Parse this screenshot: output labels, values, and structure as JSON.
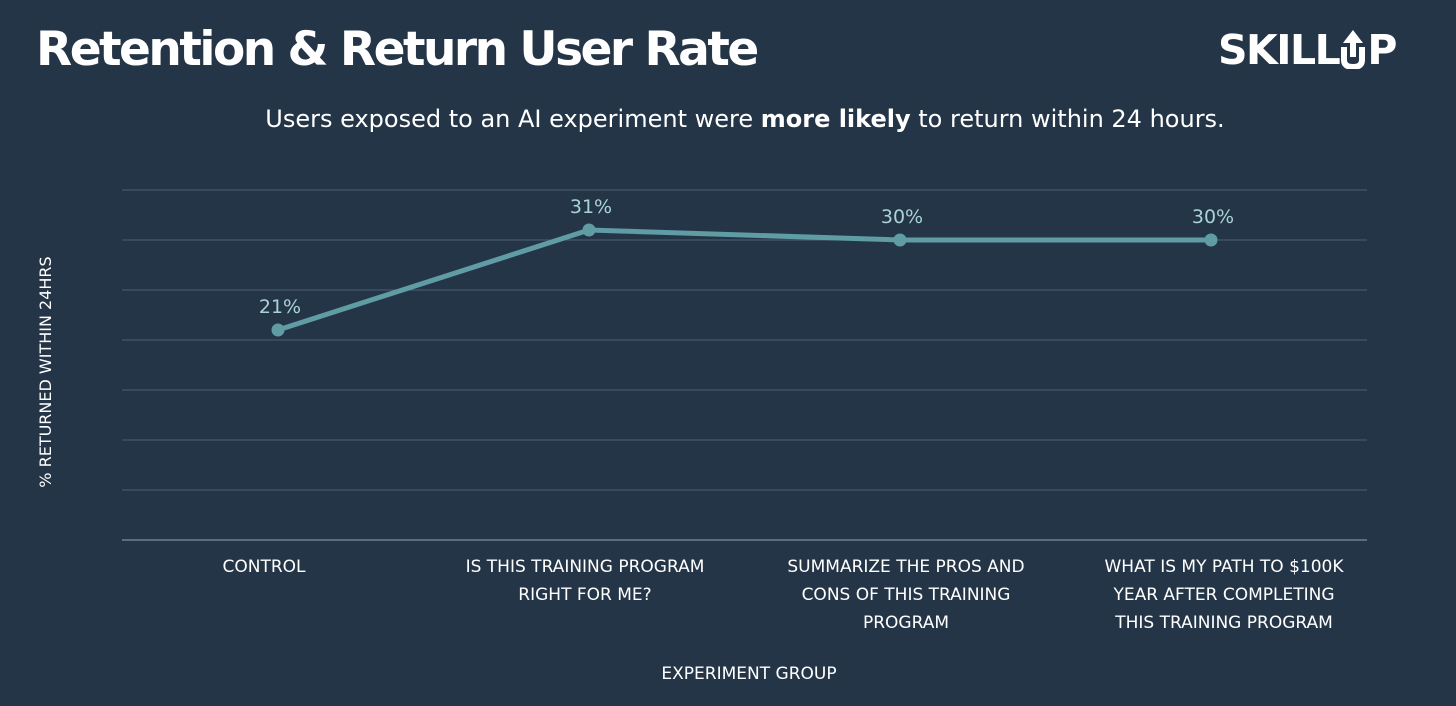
{
  "header": {
    "title": "Retention & Return User Rate",
    "logo_text_left": "SKILL",
    "logo_text_right": "P",
    "logo_icon": "arrow-up-u-icon",
    "subtitle_before": "Users exposed to an AI experiment were ",
    "subtitle_bold": "more likely",
    "subtitle_after": " to return within 24 hours."
  },
  "colors": {
    "background": "#253548",
    "line": "#5f9ca4",
    "label": "#a9d3d8",
    "grid": "#4b5f72",
    "axis": "#6f8090",
    "text": "#ffffff"
  },
  "chart_data": {
    "type": "line",
    "title": "Retention & Return User Rate",
    "subtitle": "Users exposed to an AI experiment were more likely to return within 24 hours.",
    "xlabel": "EXPERIMENT GROUP",
    "ylabel": "% RETURNED WITHIN 24HRS",
    "categories": [
      [
        "CONTROL"
      ],
      [
        "IS THIS TRAINING PROGRAM",
        "RIGHT FOR ME?"
      ],
      [
        "SUMMARIZE THE PROS AND",
        "CONS OF THIS TRAINING",
        "PROGRAM"
      ],
      [
        "WHAT IS MY PATH TO $100K",
        "YEAR AFTER COMPLETING",
        "THIS TRAINING PROGRAM"
      ]
    ],
    "series": [
      {
        "name": "% returned within 24hrs",
        "values": [
          21,
          31,
          30,
          30
        ],
        "labels": [
          "21%",
          "31%",
          "30%",
          "30%"
        ]
      }
    ],
    "ylim": [
      0,
      35
    ],
    "ytick_step": 5,
    "grid": true,
    "y_tick_labels_shown": false,
    "legend": "none"
  }
}
